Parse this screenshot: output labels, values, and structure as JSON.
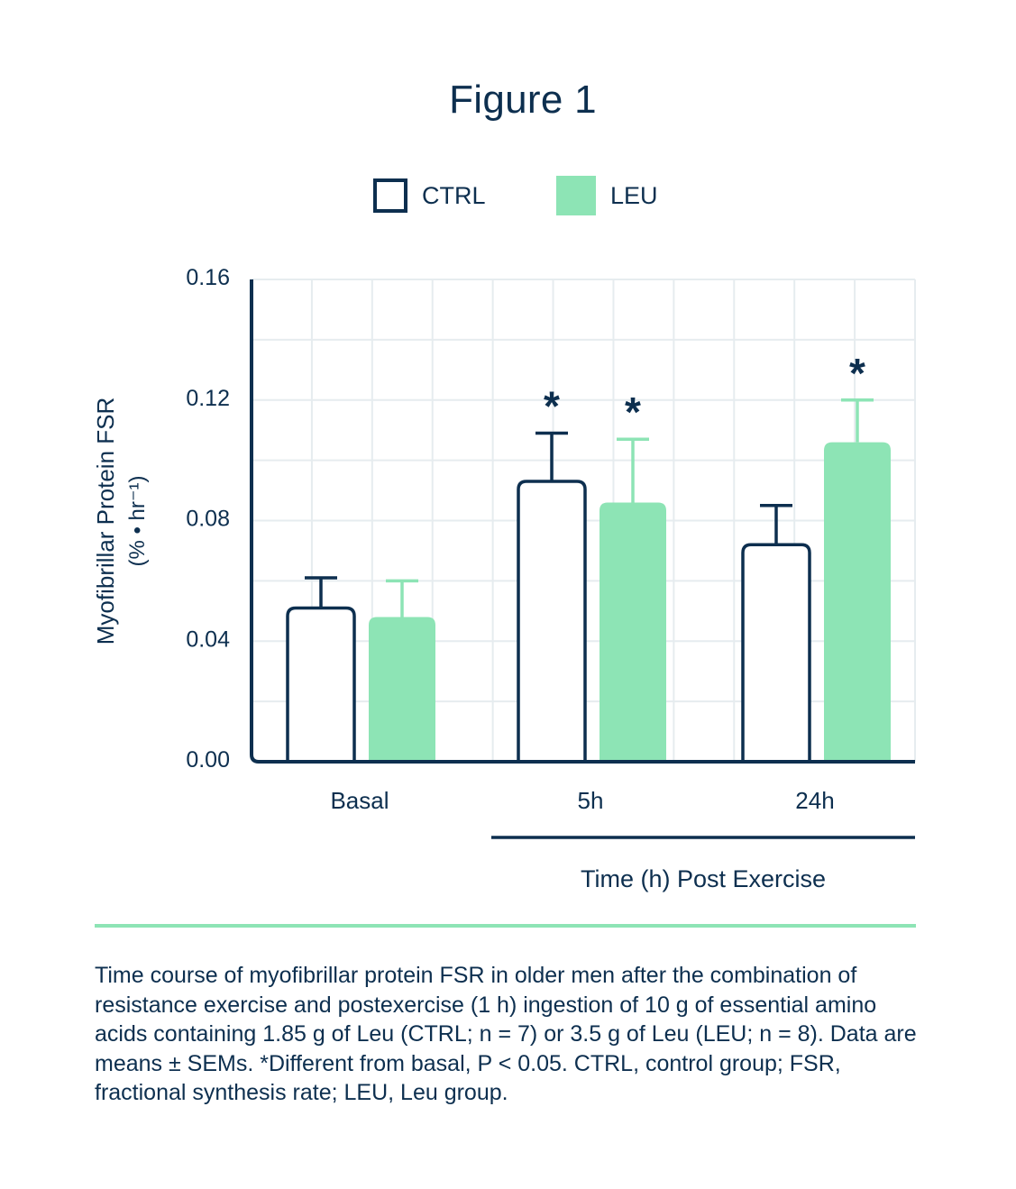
{
  "figure_title": "Figure 1",
  "legend": [
    {
      "name": "CTRL",
      "color": "#ffffff",
      "stroke": "#0d2f4f"
    },
    {
      "name": "LEU",
      "color": "#8de4b5"
    }
  ],
  "chart_data": {
    "type": "bar",
    "title": "",
    "ylabel_line1": "Myofibrillar Protein FSR",
    "ylabel_line2": "(% • hr⁻¹)",
    "xlabel": "Time (h) Post Exercise",
    "categories": [
      "Basal",
      "5h",
      "24h"
    ],
    "ylim": [
      0,
      0.16
    ],
    "yticks": [
      "0.00",
      "0.04",
      "0.08",
      "0.12",
      "0.16"
    ],
    "grid": true,
    "legend_position": "top-center",
    "series": [
      {
        "name": "CTRL",
        "values": [
          0.051,
          0.093,
          0.072
        ],
        "errors": [
          0.01,
          0.016,
          0.013
        ],
        "significant": [
          false,
          true,
          false
        ]
      },
      {
        "name": "LEU",
        "values": [
          0.048,
          0.086,
          0.106
        ],
        "errors": [
          0.012,
          0.021,
          0.014
        ],
        "significant": [
          false,
          true,
          true
        ]
      }
    ],
    "annotation_symbol": "*",
    "colors": {
      "axis": "#0d2f4f",
      "ctrl_stroke": "#0d2f4f",
      "leu_fill": "#8de4b5",
      "grid": "#e6ecef",
      "divider": "#8de4b5"
    }
  },
  "caption": "Time course of myofibrillar protein FSR in older men after the combination of resistance exercise and postexercise (1 h) ingestion of 10 g of essential amino acids containing 1.85 g of Leu (CTRL; n = 7) or 3.5 g of Leu (LEU; n = 8). Data are means ± SEMs. *Different from basal, P < 0.05. CTRL, control group; FSR, fractional synthesis rate; LEU, Leu group."
}
